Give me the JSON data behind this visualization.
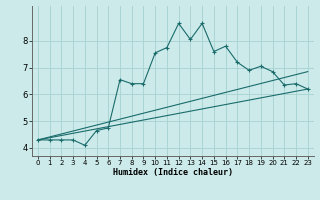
{
  "xlabel": "Humidex (Indice chaleur)",
  "bg_color": "#cceaea",
  "line_color": "#1a6b6b",
  "grid_color": "#aad4d4",
  "xlim": [
    -0.5,
    23.5
  ],
  "ylim": [
    3.7,
    9.3
  ],
  "yticks": [
    4,
    5,
    6,
    7,
    8
  ],
  "xticks": [
    0,
    1,
    2,
    3,
    4,
    5,
    6,
    7,
    8,
    9,
    10,
    11,
    12,
    13,
    14,
    15,
    16,
    17,
    18,
    19,
    20,
    21,
    22,
    23
  ],
  "line1_x": [
    0,
    1,
    2,
    3,
    4,
    5,
    6,
    7,
    8,
    9,
    10,
    11,
    12,
    13,
    14,
    15,
    16,
    17,
    18,
    19,
    20,
    21,
    22,
    23
  ],
  "line1_y": [
    4.3,
    4.3,
    4.3,
    4.3,
    4.1,
    4.65,
    4.75,
    6.55,
    6.4,
    6.4,
    7.55,
    7.75,
    8.65,
    8.05,
    8.65,
    7.6,
    7.8,
    7.2,
    6.9,
    7.05,
    6.85,
    6.35,
    6.4,
    6.2
  ],
  "line2_x": [
    0,
    23
  ],
  "line2_y": [
    4.3,
    6.85
  ],
  "line3_x": [
    0,
    23
  ],
  "line3_y": [
    4.3,
    6.2
  ]
}
